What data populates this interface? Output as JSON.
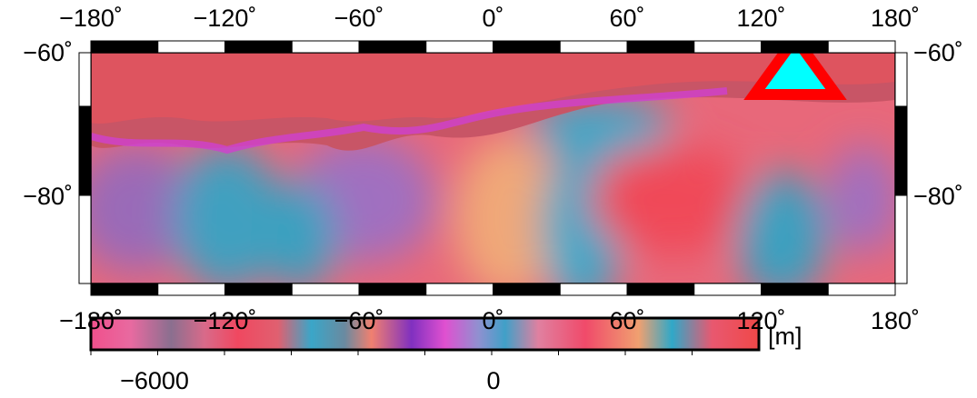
{
  "map": {
    "top_labels": [
      "−180˚",
      "−120˚",
      "−60˚",
      "0˚",
      "60˚",
      "120˚",
      "180˚"
    ],
    "bottom_labels": [
      "−180˚",
      "−120˚",
      "−60˚",
      "0˚",
      "60˚",
      "120˚",
      "180˚"
    ],
    "left_labels": [
      "−60˚",
      "−80˚"
    ],
    "right_labels": [
      "−60˚",
      "−80˚"
    ],
    "colorbar": {
      "tick_labels": [
        "−6000",
        "0"
      ],
      "unit": "[m]"
    }
  }
}
